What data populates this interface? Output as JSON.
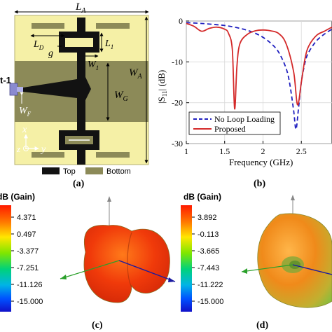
{
  "panel_a": {
    "caption": "(a)",
    "dim_LA": "L",
    "dim_LA_sub": "A",
    "dim_LD": "L",
    "dim_LD_sub": "D",
    "dim_g": "g",
    "dim_L1": "L",
    "dim_L1_sub": "1",
    "dim_W1": "W",
    "dim_W1_sub": "1",
    "dim_WA": "W",
    "dim_WA_sub": "A",
    "dim_WG": "W",
    "dim_WG_sub": "G",
    "dim_WF": "W",
    "dim_WF_sub": "F",
    "port_label": "t-1",
    "axis_x": "x",
    "axis_y": "y",
    "axis_z": "z",
    "legend_top": "Top",
    "legend_bottom": "Bottom",
    "colors": {
      "substrate": "#f5f0a6",
      "ground": "#8c8a58",
      "copper": "#121212",
      "port": "#8a8ad0"
    }
  },
  "panel_b": {
    "caption": "(b)",
    "ylabel_pre": "|S",
    "ylabel_sub": "11",
    "ylabel_post": "| (dB)",
    "xlabel": "Frequency (GHz)",
    "xticks": [
      "1",
      "1.5",
      "2",
      "2.5"
    ],
    "yticks": [
      "0",
      "-10",
      "-20",
      "-30"
    ],
    "legend": [
      "No Loop Loading",
      "Proposed"
    ]
  },
  "chart_data": {
    "type": "line",
    "xlabel": "Frequency (GHz)",
    "ylabel": "|S11| (dB)",
    "xlim": [
      1,
      2.9
    ],
    "ylim": [
      -30,
      0
    ],
    "legend_position": "bottom-right",
    "series": [
      {
        "name": "No Loop Loading",
        "style": "dashed",
        "color": "#1f1fbf",
        "x": [
          1.0,
          1.2,
          1.4,
          1.5,
          1.6,
          1.7,
          1.8,
          1.9,
          2.0,
          2.1,
          2.2,
          2.3,
          2.35,
          2.4,
          2.43,
          2.46,
          2.5,
          2.55,
          2.6,
          2.7,
          2.8,
          2.9
        ],
        "y": [
          -0.4,
          -0.6,
          -0.9,
          -1.1,
          -1.4,
          -1.8,
          -2.3,
          -3.0,
          -4.0,
          -5.4,
          -7.5,
          -11.5,
          -15.5,
          -22.0,
          -26.5,
          -22.0,
          -15.0,
          -10.0,
          -7.5,
          -4.8,
          -3.2,
          -2.0
        ]
      },
      {
        "name": "Proposed",
        "style": "solid",
        "color": "#d42a2a",
        "x": [
          1.0,
          1.1,
          1.2,
          1.3,
          1.4,
          1.5,
          1.55,
          1.6,
          1.63,
          1.66,
          1.7,
          1.8,
          1.9,
          2.0,
          2.1,
          2.2,
          2.3,
          2.4,
          2.45,
          2.5,
          2.55,
          2.6,
          2.7,
          2.8,
          2.9
        ],
        "y": [
          -0.6,
          -1.3,
          -2.5,
          -1.8,
          -1.5,
          -2.0,
          -3.0,
          -7.0,
          -21.5,
          -11.0,
          -5.5,
          -3.2,
          -2.4,
          -2.2,
          -2.4,
          -3.0,
          -5.5,
          -12.5,
          -20.5,
          -15.0,
          -9.0,
          -6.0,
          -3.5,
          -2.5,
          -1.5
        ]
      }
    ]
  },
  "panel_c": {
    "caption": "(c)",
    "scale_title": "dB (Gain)",
    "ticks": [
      "4.371",
      "0.497",
      "-3.377",
      "-7.251",
      "-11.126",
      "-15.000"
    ]
  },
  "panel_d": {
    "caption": "(d)",
    "scale_title": "dB (Gain)",
    "ticks": [
      "3.892",
      "-0.113",
      "-3.665",
      "-7.443",
      "-11.222",
      "-15.000"
    ]
  }
}
